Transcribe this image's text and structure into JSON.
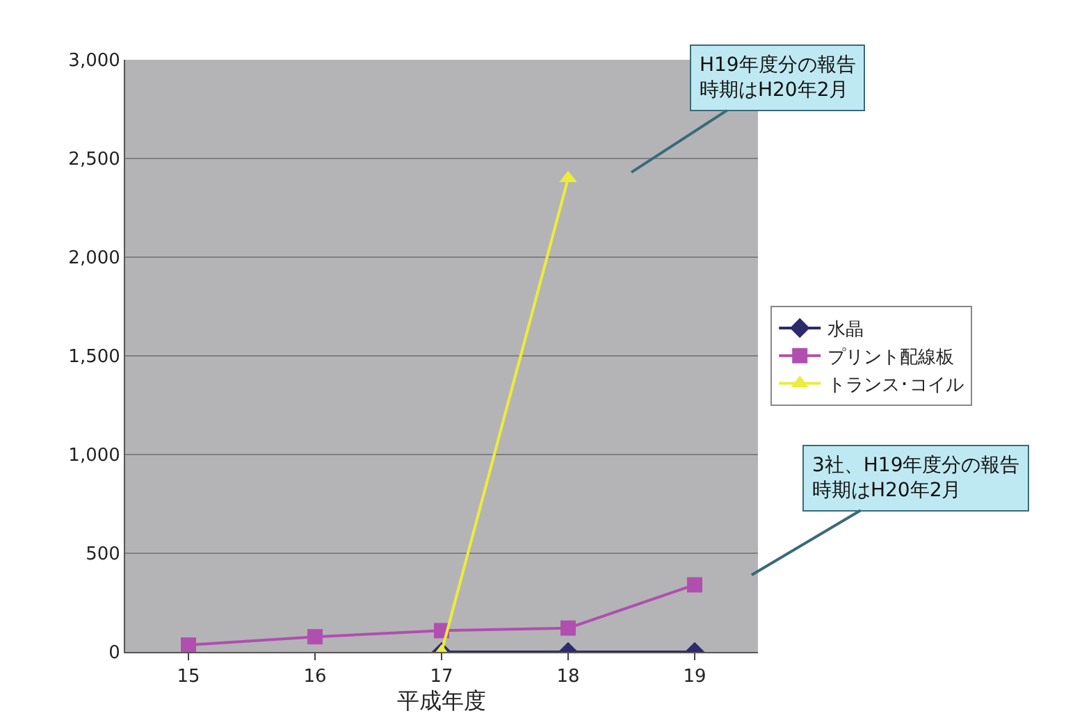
{
  "chart_data": {
    "type": "line",
    "xlabel": "平成年度",
    "categories": [
      "15",
      "16",
      "17",
      "18",
      "19"
    ],
    "series": [
      {
        "name": "水晶",
        "color": "#2e2a6e",
        "marker": "diamond",
        "values": [
          null,
          null,
          0,
          0,
          0
        ]
      },
      {
        "name": "プリント配線板",
        "color": "#b04fb0",
        "marker": "square",
        "values": [
          35,
          77,
          108,
          121,
          340
        ]
      },
      {
        "name": "トランス･コイル",
        "color": "#ecec3a",
        "marker": "triangle",
        "values": [
          null,
          null,
          0,
          2400,
          null
        ]
      }
    ],
    "ylim": [
      0,
      3000
    ],
    "yticks": [
      {
        "value": 0,
        "label": "0"
      },
      {
        "value": 500,
        "label": "500"
      },
      {
        "value": 1000,
        "label": "1,000"
      },
      {
        "value": 1500,
        "label": "1,500"
      },
      {
        "value": 2000,
        "label": "2,000"
      },
      {
        "value": 2500,
        "label": "2,500"
      },
      {
        "value": 3000,
        "label": "3,000"
      }
    ],
    "grid": "y",
    "legend": "right",
    "annotations": [
      "H19年度分の報告時期はH20年2月",
      "3社、H19年度分の報告時期はH20年2月"
    ]
  }
}
